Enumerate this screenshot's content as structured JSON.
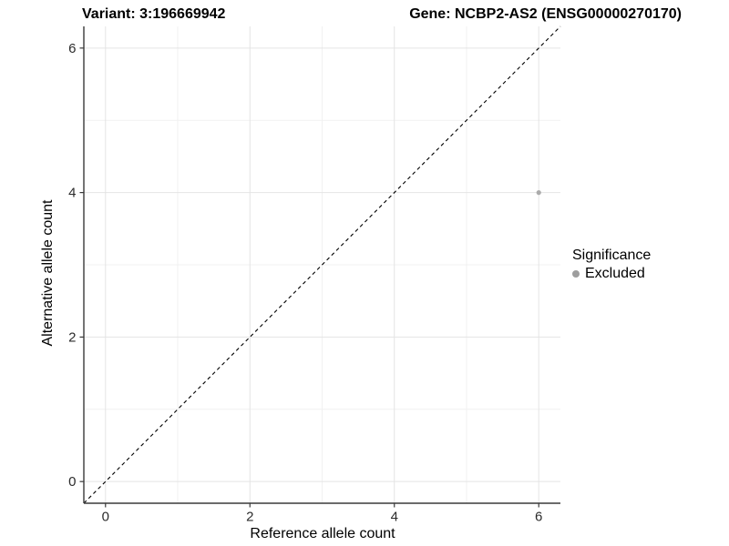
{
  "chart_data": {
    "type": "scatter",
    "title_left": "Variant: 3:196669942",
    "title_right": "Gene: NCBP2-AS2 (ENSG00000270170)",
    "xlabel": "Reference allele count",
    "ylabel": "Alternative allele count",
    "xlim": [
      -0.3,
      6.3
    ],
    "ylim": [
      -0.3,
      6.3
    ],
    "xticks": [
      0,
      2,
      4,
      6
    ],
    "yticks": [
      0,
      2,
      4,
      6
    ],
    "minor_x": [
      1,
      3,
      5
    ],
    "minor_y": [
      1,
      3,
      5
    ],
    "grid": true,
    "points": [
      {
        "x": 6,
        "y": 4,
        "series": "Excluded",
        "color": "#ababab",
        "radius": 2.6
      }
    ],
    "reference_line": {
      "slope": 1,
      "intercept": 0,
      "style": "dashed",
      "color": "#000000"
    },
    "legend": {
      "position": "right",
      "title": "Significance",
      "entries": [
        {
          "label": "Excluded",
          "color": "#9e9e9e"
        }
      ]
    },
    "colors": {
      "grid_major": "#e4e4e4",
      "grid_minor": "#f1f1f1",
      "axis_line": "#3a3a3a",
      "tick_mark": "#3a3a3a",
      "tick_label": "#2b2b2b"
    }
  }
}
